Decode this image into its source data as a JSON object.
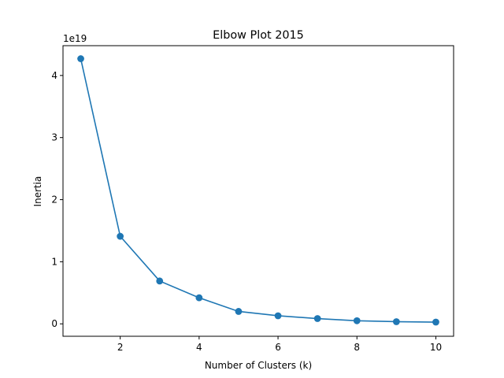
{
  "chart_data": {
    "type": "line",
    "title": "Elbow Plot 2015",
    "xlabel": "Number of Clusters (k)",
    "ylabel": "Inertia",
    "y_offset_label": "1e19",
    "x_ticks": [
      2,
      4,
      6,
      8,
      10
    ],
    "y_ticks": [
      0,
      1,
      2,
      3,
      4
    ],
    "xlim": [
      0.55,
      10.45
    ],
    "ylim": [
      -0.2,
      4.48
    ],
    "grid": false,
    "series": [
      {
        "color": "#1f77b4",
        "marker": "circle",
        "x": [
          1,
          2,
          3,
          4,
          5,
          6,
          7,
          8,
          9,
          10
        ],
        "y": [
          4.27,
          1.41,
          0.69,
          0.42,
          0.2,
          0.13,
          0.085,
          0.05,
          0.035,
          0.028
        ]
      }
    ]
  }
}
